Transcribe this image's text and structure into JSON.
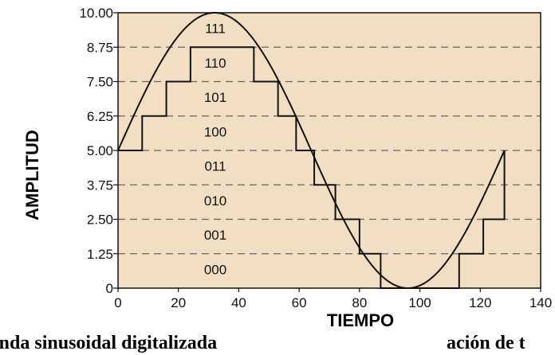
{
  "chart_data": {
    "type": "line",
    "xlabel": "TIEMPO",
    "ylabel": "AMPLITUD",
    "caption": "Onda sinusoidal digitalizada",
    "caption_tail": "ación de t",
    "xlim": [
      0,
      140
    ],
    "ylim": [
      0,
      10
    ],
    "x_ticks": [
      "0",
      "20",
      "40",
      "60",
      "80",
      "100",
      "120",
      "140"
    ],
    "y_ticks": [
      "0",
      "1.25",
      "2.50",
      "3.75",
      "5.00",
      "6.25",
      "7.50",
      "8.75",
      "10.00"
    ],
    "levels": [
      "000",
      "001",
      "010",
      "011",
      "100",
      "101",
      "110",
      "111"
    ],
    "grid": "dashed horizontal at quantization levels",
    "background_color": "#f2dec2",
    "series": [
      {
        "type": "sine",
        "x": [
          0,
          4,
          8,
          12,
          16,
          20,
          24,
          28,
          32,
          36,
          40,
          44,
          48,
          52,
          56,
          60,
          64,
          68,
          72,
          76,
          80,
          84,
          88,
          92,
          96,
          100,
          104,
          108,
          112,
          116,
          120,
          124,
          128
        ],
        "y": [
          5.0,
          5.98,
          6.91,
          7.78,
          8.54,
          9.15,
          9.62,
          9.9,
          10.0,
          9.9,
          9.62,
          9.15,
          8.54,
          7.78,
          6.91,
          5.98,
          5.0,
          4.02,
          3.09,
          2.22,
          1.46,
          0.85,
          0.38,
          0.1,
          0.0,
          0.1,
          0.38,
          0.85,
          1.46,
          2.22,
          3.09,
          4.02,
          5.0
        ]
      },
      {
        "type": "step",
        "x": [
          0,
          8,
          16,
          24,
          45,
          53,
          59,
          65,
          72,
          80,
          87,
          113,
          121,
          128
        ],
        "y": [
          5.0,
          6.25,
          7.5,
          8.75,
          7.5,
          6.25,
          5.0,
          3.75,
          2.5,
          1.25,
          0,
          1.25,
          2.5,
          3.75
        ]
      }
    ]
  }
}
